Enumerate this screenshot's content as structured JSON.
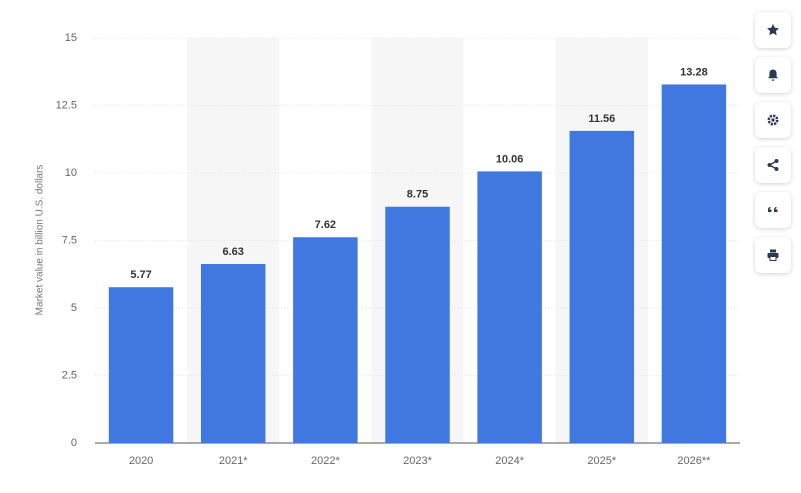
{
  "chart_data": {
    "type": "bar",
    "y_label": "Market value in billion U.S. dollars",
    "categories": [
      "2020",
      "2021*",
      "2022*",
      "2023*",
      "2024*",
      "2025*",
      "2026**"
    ],
    "values": [
      5.77,
      6.63,
      7.62,
      8.75,
      10.06,
      11.56,
      13.28
    ],
    "color": "#4178e0",
    "ylim": [
      0,
      15
    ],
    "yticks": [
      0,
      2.5,
      5,
      7.5,
      10,
      12.5,
      15
    ],
    "grid": true
  }
}
